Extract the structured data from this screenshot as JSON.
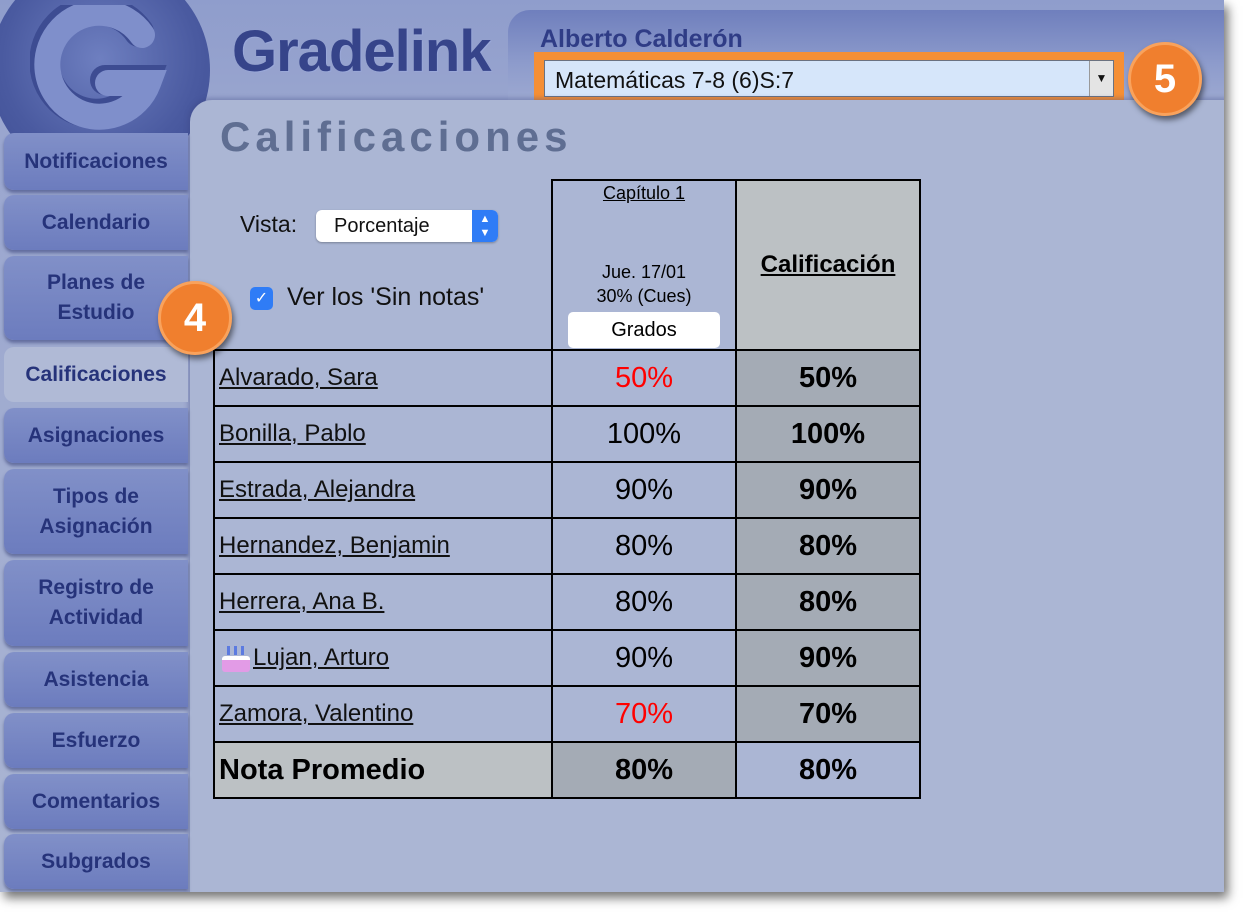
{
  "app": {
    "brand": "Gradelink",
    "logo_letter": "G",
    "user": "Alberto Calderón",
    "course": "Matemáticas 7-8 (6)S:7",
    "page_title": "Calificaciones"
  },
  "sidebar": {
    "items": [
      {
        "label": "Notificaciones"
      },
      {
        "label": "Calendario"
      },
      {
        "label": "Planes de Estudio"
      },
      {
        "label": "Calificaciones",
        "selected": true
      },
      {
        "label": "Asignaciones"
      },
      {
        "label": "Tipos de Asignación"
      },
      {
        "label": "Registro de Actividad"
      },
      {
        "label": "Asistencia"
      },
      {
        "label": "Esfuerzo"
      },
      {
        "label": "Comentarios"
      },
      {
        "label": "Subgrados"
      }
    ]
  },
  "controls": {
    "vista_label": "Vista:",
    "vista_value": "Porcentaje",
    "sin_notas_label": "Ver los 'Sin notas'",
    "sin_notas_checked": true
  },
  "table": {
    "assignment": {
      "title": "Capítulo 1",
      "date": "Jue. 17/01",
      "weight": "30% (Cues)",
      "button": "Grados"
    },
    "grade_header": "Calificación",
    "rows": [
      {
        "name": "Alvarado, Sara",
        "score": "50%",
        "grade": "50%",
        "low": true
      },
      {
        "name": "Bonilla, Pablo",
        "score": "100%",
        "grade": "100%"
      },
      {
        "name": "Estrada, Alejandra",
        "score": "90%",
        "grade": "90%"
      },
      {
        "name": "Hernandez, Benjamin",
        "score": "80%",
        "grade": "80%"
      },
      {
        "name": "Herrera, Ana B.",
        "score": "80%",
        "grade": "80%"
      },
      {
        "name": "Lujan, Arturo",
        "score": "90%",
        "grade": "90%",
        "birthday_icon": "birthday-cake-icon"
      },
      {
        "name": "Zamora, Valentino",
        "score": "70%",
        "grade": "70%",
        "low": true
      }
    ],
    "average": {
      "label": "Nota Promedio",
      "score": "80%",
      "grade": "80%"
    }
  },
  "callouts": {
    "a": "4",
    "b": "5"
  },
  "colors": {
    "accent_orange": "#f58f35",
    "low_score": "#ff0000",
    "selected_blue": "#2f7cf6"
  }
}
